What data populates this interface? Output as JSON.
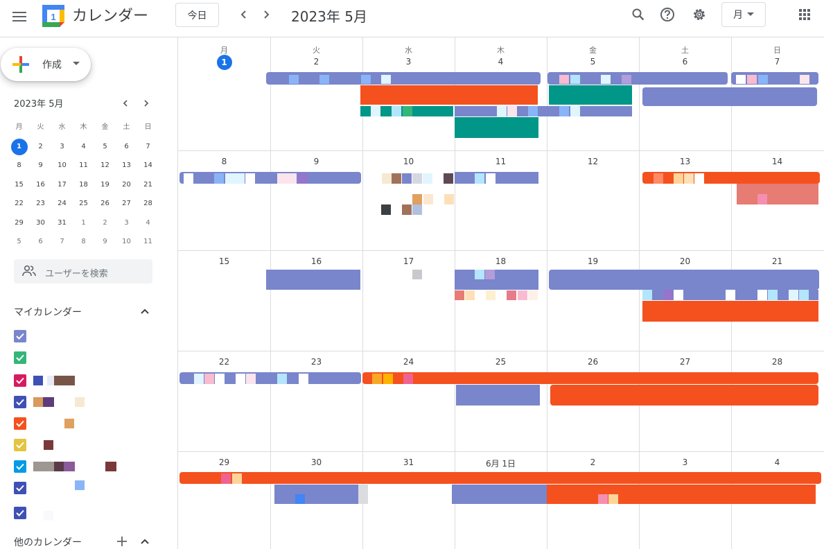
{
  "header": {
    "app_title": "カレンダー",
    "today_label": "今日",
    "current_period": "2023年 5月",
    "view_label": "月",
    "logo_number": "1"
  },
  "sidebar": {
    "create_label": "作成",
    "mini_title": "2023年 5月",
    "mini_weekdays": [
      "月",
      "火",
      "水",
      "木",
      "金",
      "土",
      "日"
    ],
    "mini_weeks": [
      [
        "1",
        "2",
        "3",
        "4",
        "5",
        "6",
        "7"
      ],
      [
        "8",
        "9",
        "10",
        "11",
        "12",
        "13",
        "14"
      ],
      [
        "15",
        "16",
        "17",
        "18",
        "19",
        "20",
        "21"
      ],
      [
        "22",
        "23",
        "24",
        "25",
        "26",
        "27",
        "28"
      ],
      [
        "29",
        "30",
        "31",
        "1",
        "2",
        "3",
        "4"
      ],
      [
        "5",
        "6",
        "7",
        "8",
        "9",
        "10",
        "11"
      ]
    ],
    "search_placeholder": "ユーザーを検索",
    "my_calendars_title": "マイカレンダー",
    "other_calendars_title": "他のカレンダー",
    "calendar_colors": [
      "#7986cb",
      "#33b679",
      "#d81b60",
      "#3f51b5",
      "#f4511e",
      "#e4c441",
      "#039be5",
      "#3f51b5",
      "#3f51b5"
    ]
  },
  "month": {
    "weekdays": [
      "月",
      "火",
      "水",
      "木",
      "金",
      "土",
      "日"
    ],
    "weeks": [
      [
        "1",
        "2",
        "3",
        "4",
        "5",
        "6",
        "7"
      ],
      [
        "8",
        "9",
        "10",
        "11",
        "12",
        "13",
        "14"
      ],
      [
        "15",
        "16",
        "17",
        "18",
        "19",
        "20",
        "21"
      ],
      [
        "22",
        "23",
        "24",
        "25",
        "26",
        "27",
        "28"
      ],
      [
        "29",
        "30",
        "31",
        "6月 1日",
        "2",
        "3",
        "4"
      ]
    ]
  },
  "colors": {
    "accent": "#1a73e8",
    "lavender": "#7986cb",
    "tangerine": "#f4511e",
    "peacock": "#009688",
    "flamingo": "#e67c73"
  }
}
